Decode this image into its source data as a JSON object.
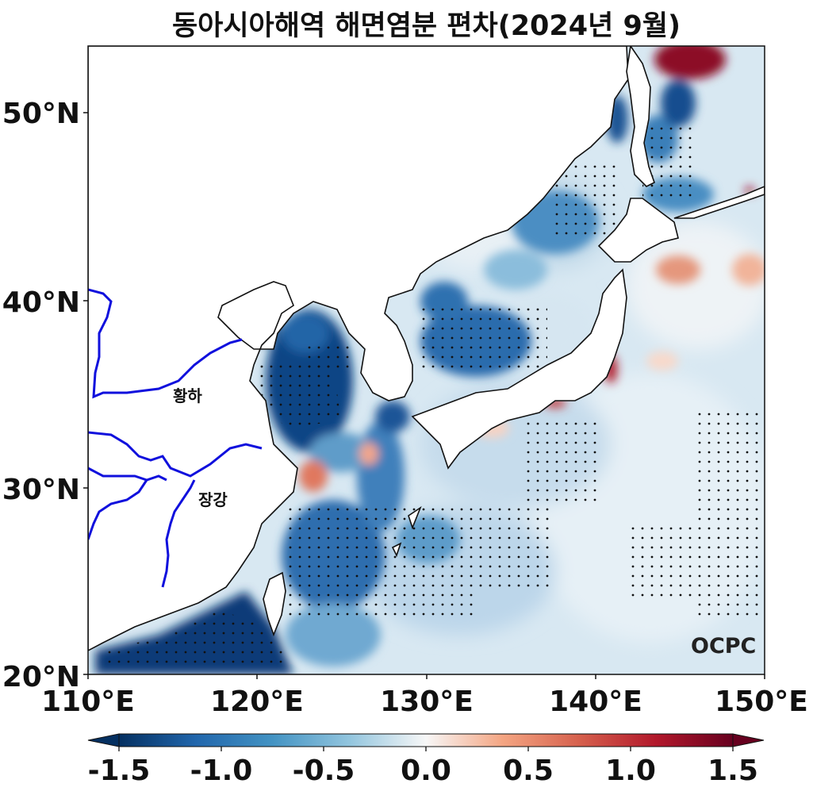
{
  "title": "동아시아해역 해면염분 편차(2024년 9월)",
  "map": {
    "lon_range": [
      110,
      150
    ],
    "lat_range": [
      20,
      53.5
    ],
    "lat_ticks": [
      "50°N",
      "40°N",
      "30°N",
      "20°N"
    ],
    "lon_ticks": [
      "110°E",
      "120°E",
      "130°E",
      "140°E",
      "150°E"
    ],
    "stippling": "dots mark significant anomalies",
    "river_color": "#1010dd",
    "rivers": [
      {
        "name": "황하"
      },
      {
        "name": "장강"
      }
    ],
    "logo": "OCPC"
  },
  "colorbar": {
    "range": [
      -1.5,
      1.5
    ],
    "colormap": "RdBu_r",
    "extend": "both",
    "tick_labels": [
      "-1.5",
      "-1.0",
      "-0.5",
      "0.0",
      "0.5",
      "1.0",
      "1.5"
    ],
    "low_color": "#053061",
    "high_color": "#67001f"
  }
}
